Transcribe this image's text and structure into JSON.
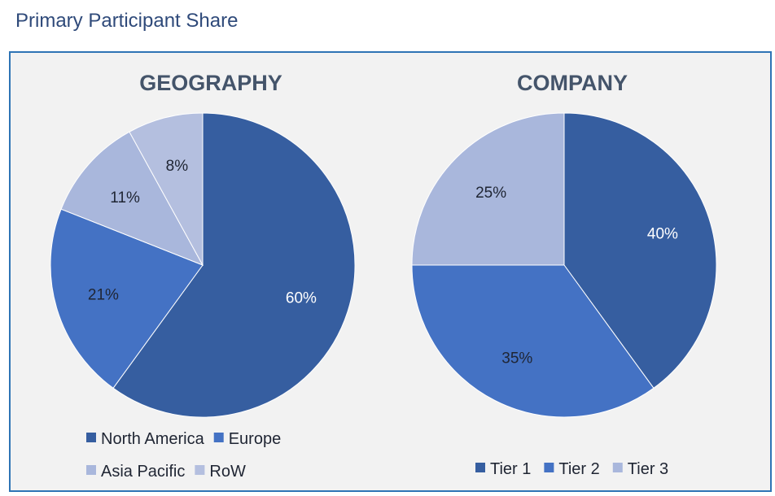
{
  "page": {
    "title": "Primary Participant Share"
  },
  "chart_data": [
    {
      "type": "pie",
      "title": "GEOGRAPHY",
      "categories": [
        "North America",
        "Europe",
        "Asia Pacific",
        "RoW"
      ],
      "values": [
        60,
        21,
        11,
        8
      ],
      "labels": [
        "60%",
        "21%",
        "11%",
        "8%"
      ],
      "colors": [
        "#365ea0",
        "#4472c4",
        "#a9b7dc",
        "#b4bfdf"
      ],
      "label_colors": [
        "#ffffff",
        "#1f2533",
        "#1f2533",
        "#1f2533"
      ],
      "legend_position": "bottom",
      "legend_rows": [
        [
          "North America",
          "Europe"
        ],
        [
          "Asia Pacific",
          "RoW"
        ]
      ]
    },
    {
      "type": "pie",
      "title": "COMPANY",
      "categories": [
        "Tier 1",
        "Tier 2",
        "Tier 3"
      ],
      "values": [
        40,
        35,
        25
      ],
      "labels": [
        "40%",
        "35%",
        "25%"
      ],
      "colors": [
        "#365ea0",
        "#4472c4",
        "#a9b7dc"
      ],
      "label_colors": [
        "#ffffff",
        "#1f2533",
        "#1f2533"
      ],
      "legend_position": "bottom",
      "legend_rows": [
        [
          "Tier 1",
          "Tier 2",
          "Tier 3"
        ]
      ]
    }
  ]
}
